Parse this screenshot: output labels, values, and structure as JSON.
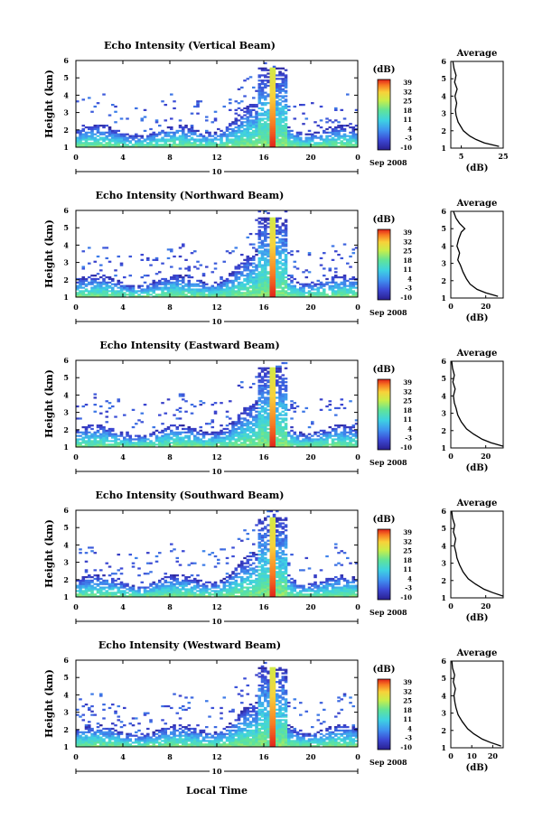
{
  "figure": {
    "xlabel": "Local Time",
    "date_label": "Sep 2008",
    "date_day": "10"
  },
  "chart_data": [
    {
      "type": "heatmap",
      "title": "Echo Intensity (Vertical Beam)",
      "ylabel": "Height (km)",
      "xlim": [
        0,
        24
      ],
      "ylim": [
        1,
        6
      ],
      "xticks": [
        "0",
        "4",
        "8",
        "12",
        "16",
        "20",
        "0"
      ],
      "yticks": [
        "1",
        "2",
        "3",
        "4",
        "5",
        "6"
      ],
      "colorbar": {
        "label": "(dB)",
        "ticks": [
          "39",
          "32",
          "25",
          "18",
          "11",
          "4",
          "-3",
          "-10"
        ]
      },
      "storm": {
        "center_hour": 16.8,
        "top_km": 5.6
      },
      "profile": {
        "title": "Average",
        "xlabel": "(dB)",
        "xlim": [
          0,
          25
        ],
        "xticks": [
          "5",
          "25"
        ],
        "yticks": [
          "1",
          "2",
          "3",
          "4",
          "5",
          "6"
        ],
        "points": [
          [
            1.1,
            23
          ],
          [
            1.3,
            16
          ],
          [
            1.5,
            12
          ],
          [
            1.7,
            9
          ],
          [
            2.0,
            6
          ],
          [
            2.5,
            3.5
          ],
          [
            2.9,
            2.5
          ],
          [
            3.2,
            2.2
          ],
          [
            3.6,
            2.8
          ],
          [
            4.0,
            2.0
          ],
          [
            4.4,
            3.0
          ],
          [
            4.8,
            1.8
          ],
          [
            5.2,
            2.5
          ],
          [
            5.6,
            1.5
          ],
          [
            6.0,
            1.0
          ]
        ]
      }
    },
    {
      "type": "heatmap",
      "title": "Echo Intensity (Northward Beam)",
      "ylabel": "Height (km)",
      "xlim": [
        0,
        24
      ],
      "ylim": [
        1,
        6
      ],
      "xticks": [
        "0",
        "4",
        "8",
        "12",
        "16",
        "20",
        "0"
      ],
      "yticks": [
        "1",
        "2",
        "3",
        "4",
        "5",
        "6"
      ],
      "colorbar": {
        "label": "(dB)",
        "ticks": [
          "39",
          "32",
          "25",
          "18",
          "11",
          "4",
          "-3",
          "-10"
        ]
      },
      "storm": {
        "center_hour": 16.8,
        "top_km": 5.6
      },
      "profile": {
        "title": "Average",
        "xlabel": "(dB)",
        "xlim": [
          0,
          30
        ],
        "xticks": [
          "0",
          "20"
        ],
        "yticks": [
          "1",
          "2",
          "3",
          "4",
          "5",
          "6"
        ],
        "points": [
          [
            1.1,
            27
          ],
          [
            1.3,
            20
          ],
          [
            1.5,
            15
          ],
          [
            1.8,
            11
          ],
          [
            2.1,
            9
          ],
          [
            2.5,
            7
          ],
          [
            2.9,
            5.5
          ],
          [
            3.2,
            4
          ],
          [
            3.6,
            5
          ],
          [
            4.0,
            3.5
          ],
          [
            4.4,
            4.5
          ],
          [
            4.8,
            6
          ],
          [
            5.0,
            8
          ],
          [
            5.3,
            5
          ],
          [
            5.6,
            3
          ],
          [
            6.0,
            1.5
          ]
        ]
      }
    },
    {
      "type": "heatmap",
      "title": "Echo Intensity (Eastward Beam)",
      "ylabel": "Height (km)",
      "xlim": [
        0,
        24
      ],
      "ylim": [
        1,
        6
      ],
      "xticks": [
        "0",
        "4",
        "8",
        "12",
        "16",
        "20",
        "0"
      ],
      "yticks": [
        "1",
        "2",
        "3",
        "4",
        "5",
        "6"
      ],
      "colorbar": {
        "label": "(dB)",
        "ticks": [
          "39",
          "32",
          "25",
          "18",
          "11",
          "4",
          "-3",
          "-10"
        ]
      },
      "storm": {
        "center_hour": 16.8,
        "top_km": 5.6
      },
      "profile": {
        "title": "Average",
        "xlabel": "(dB)",
        "xlim": [
          0,
          30
        ],
        "xticks": [
          "0",
          "20"
        ],
        "yticks": [
          "1",
          "2",
          "3",
          "4",
          "5",
          "6"
        ],
        "points": [
          [
            1.1,
            30
          ],
          [
            1.3,
            23
          ],
          [
            1.5,
            18
          ],
          [
            1.8,
            13
          ],
          [
            2.1,
            9
          ],
          [
            2.5,
            6
          ],
          [
            2.9,
            4
          ],
          [
            3.3,
            3
          ],
          [
            3.6,
            2
          ],
          [
            4.0,
            1.5
          ],
          [
            4.4,
            2.5
          ],
          [
            4.8,
            1.2
          ],
          [
            5.2,
            2
          ],
          [
            5.6,
            1
          ],
          [
            6.0,
            0.5
          ]
        ]
      }
    },
    {
      "type": "heatmap",
      "title": "Echo Intensity (Southward Beam)",
      "ylabel": "Height (km)",
      "xlim": [
        0,
        24
      ],
      "ylim": [
        1,
        6
      ],
      "xticks": [
        "0",
        "4",
        "8",
        "12",
        "16",
        "20",
        "0"
      ],
      "yticks": [
        "1",
        "2",
        "3",
        "4",
        "5",
        "6"
      ],
      "colorbar": {
        "label": "(dB)",
        "ticks": [
          "39",
          "32",
          "25",
          "18",
          "11",
          "4",
          "-3",
          "-10"
        ]
      },
      "storm": {
        "center_hour": 16.8,
        "top_km": 5.6
      },
      "profile": {
        "title": "Average",
        "xlabel": "(dB)",
        "xlim": [
          0,
          30
        ],
        "xticks": [
          "0",
          "20"
        ],
        "yticks": [
          "1",
          "2",
          "3",
          "4",
          "5",
          "6"
        ],
        "points": [
          [
            1.1,
            30
          ],
          [
            1.3,
            24
          ],
          [
            1.5,
            19
          ],
          [
            1.8,
            14
          ],
          [
            2.1,
            10
          ],
          [
            2.5,
            7
          ],
          [
            2.9,
            5
          ],
          [
            3.3,
            3.5
          ],
          [
            3.6,
            3
          ],
          [
            4.0,
            2
          ],
          [
            4.4,
            2.8
          ],
          [
            4.8,
            1.5
          ],
          [
            5.2,
            2.2
          ],
          [
            5.6,
            1
          ],
          [
            6.0,
            0.5
          ]
        ]
      }
    },
    {
      "type": "heatmap",
      "title": "Echo Intensity (Westward Beam)",
      "ylabel": "Height (km)",
      "xlim": [
        0,
        24
      ],
      "ylim": [
        1,
        6
      ],
      "xticks": [
        "0",
        "4",
        "8",
        "12",
        "16",
        "20",
        "0"
      ],
      "yticks": [
        "1",
        "2",
        "3",
        "4",
        "5",
        "6"
      ],
      "colorbar": {
        "label": "(dB)",
        "ticks": [
          "39",
          "32",
          "25",
          "18",
          "11",
          "4",
          "-3",
          "-10"
        ]
      },
      "storm": {
        "center_hour": 16.8,
        "top_km": 5.6
      },
      "profile": {
        "title": "Average",
        "xlabel": "(dB)",
        "xlim": [
          0,
          25
        ],
        "xticks": [
          "0",
          "10",
          "20"
        ],
        "yticks": [
          "1",
          "2",
          "3",
          "4",
          "5",
          "6"
        ],
        "points": [
          [
            1.1,
            24
          ],
          [
            1.3,
            19
          ],
          [
            1.5,
            15
          ],
          [
            1.8,
            11
          ],
          [
            2.1,
            8
          ],
          [
            2.5,
            5.5
          ],
          [
            2.9,
            3.5
          ],
          [
            3.3,
            2.5
          ],
          [
            3.6,
            2
          ],
          [
            4.0,
            1.5
          ],
          [
            4.4,
            2.2
          ],
          [
            4.8,
            1.2
          ],
          [
            5.2,
            1.8
          ],
          [
            5.6,
            0.8
          ],
          [
            6.0,
            0.5
          ]
        ]
      }
    }
  ]
}
